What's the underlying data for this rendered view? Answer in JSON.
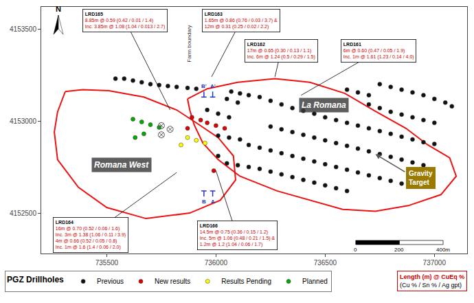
{
  "chart_data": {
    "type": "scatter",
    "xlim": [
      735200,
      737150
    ],
    "ylim": [
      4152280,
      4153620
    ],
    "xticks": [
      735500,
      736000,
      736500,
      737000
    ],
    "yticks": [
      4152500,
      4153000,
      4153500
    ],
    "grid": false,
    "legend": "bottom",
    "legend_title": "PGZ Drillholes",
    "series": [
      {
        "type": "line",
        "color": "#ee1111",
        "line_style": "solid",
        "x": [
          735310,
          735275,
          735260,
          735275,
          735370,
          735500,
          735680,
          735880,
          736020,
          736090,
          736080,
          736010,
          735910,
          735820,
          735670,
          735510,
          735390,
          735310
        ],
        "values": [
          4153160,
          4153050,
          4152940,
          4152790,
          4152640,
          4152530,
          4152470,
          4152500,
          4152570,
          4152680,
          4152810,
          4152910,
          4152990,
          4153060,
          4153130,
          4153165,
          4153170,
          4153160
        ]
      },
      {
        "type": "line",
        "color": "#ee1111",
        "line_style": "solid",
        "x": [
          735870,
          735960,
          736100,
          736270,
          736430,
          736590,
          736720,
          736870,
          736970,
          737070,
          737100,
          737030,
          736880,
          736730,
          736580,
          736430,
          736280,
          736110,
          736010,
          735940,
          735900,
          735880,
          735870
        ],
        "values": [
          4153120,
          4153175,
          4153210,
          4153230,
          4153210,
          4153150,
          4153060,
          4152960,
          4152870,
          4152800,
          4152700,
          4152600,
          4152540,
          4152510,
          4152520,
          4152570,
          4152620,
          4152700,
          4152790,
          4152880,
          4152980,
          4153060,
          4153120
        ]
      },
      {
        "name": "Previous",
        "color": "#111111",
        "marker": "circle",
        "x": [
          735540,
          735580,
          735620,
          735660,
          735700,
          735740,
          735780,
          735820,
          735870,
          735910,
          736070,
          736110,
          736150,
          736200,
          736250,
          736300,
          736350,
          736400,
          736450,
          736500,
          736550,
          736600,
          736650,
          736700,
          736750,
          736800,
          736850,
          736900,
          736950,
          737000,
          736250,
          736300,
          736350,
          736400,
          736450,
          736500,
          736550,
          736600,
          736650,
          736700,
          736750,
          736800,
          736850,
          736900,
          736950,
          736150,
          736200,
          736250,
          736300,
          736350,
          736400,
          736450,
          736500,
          736550,
          736600,
          736650,
          736700,
          736750,
          736800,
          736850,
          736050,
          736100,
          736150,
          736200,
          736250,
          736300,
          736350,
          736400,
          736450,
          736500,
          736550,
          736600,
          735960,
          736010,
          736060,
          736010,
          736060,
          736110,
          736010,
          736100,
          736050,
          736750,
          736800,
          736850,
          736900,
          736950,
          737000,
          737050,
          737080,
          736700,
          736750,
          736800,
          736850,
          736900,
          736950,
          737000,
          736600,
          736650,
          736700
        ],
        "values": [
          4153230,
          4153230,
          4153220,
          4153210,
          4153200,
          4153195,
          4153190,
          4153185,
          4153180,
          4153175,
          4153160,
          4153150,
          4153140,
          4153130,
          4153110,
          4153090,
          4153070,
          4153055,
          4153040,
          4153020,
          4153005,
          4152990,
          4152975,
          4152960,
          4152945,
          4152930,
          4152915,
          4152900,
          4152885,
          4152875,
          4152970,
          4152955,
          4152940,
          4152925,
          4152910,
          4152895,
          4152880,
          4152865,
          4152850,
          4152835,
          4152820,
          4152805,
          4152790,
          4152775,
          4152760,
          4152870,
          4152855,
          4152840,
          4152825,
          4152810,
          4152795,
          4152780,
          4152765,
          4152750,
          4152735,
          4152720,
          4152705,
          4152690,
          4152675,
          4152660,
          4152770,
          4152760,
          4152750,
          4152740,
          4152725,
          4152710,
          4152695,
          4152680,
          4152665,
          4152650,
          4152635,
          4152620,
          4153060,
          4153040,
          4153020,
          4152920,
          4152910,
          4152900,
          4152810,
          4153100,
          4153120,
          4153200,
          4153185,
          4153170,
          4153155,
          4153140,
          4153120,
          4153100,
          4153080,
          4153090,
          4153070,
          4153050,
          4153035,
          4153020,
          4153005,
          4152990,
          4153170,
          4153155,
          4153140
        ]
      },
      {
        "name": "New results",
        "color": "#dd0000",
        "marker": "circle",
        "x": [
          735890,
          735930,
          735960,
          736000,
          736040,
          735870,
          735990
        ],
        "values": [
          4153020,
          4153005,
          4152990,
          4152975,
          4152960,
          4152960,
          4152730
        ]
      },
      {
        "name": "Results Pending",
        "color": "#ffff00",
        "marker": "circle",
        "x": [
          735870,
          735910,
          735950,
          735840
        ],
        "values": [
          4152910,
          4152895,
          4152880,
          4152870
        ]
      },
      {
        "name": "Planned",
        "color": "#00aa00",
        "marker": "circle",
        "x": [
          735620,
          735660,
          735700,
          735740,
          735670,
          735630
        ],
        "values": [
          4153010,
          4152995,
          4152980,
          4152965,
          4152930,
          4152910
        ]
      },
      {
        "color": "#555555",
        "marker": "circle-x",
        "x": [
          735750,
          735790,
          735750
        ],
        "values": [
          4152975,
          4152955,
          4152925
        ]
      }
    ],
    "sections": [
      {
        "x": 735985,
        "y_top": 4153160,
        "y_bottom": 4152590,
        "label_top": "A'",
        "label_bottom": "A",
        "color": "#2233cc"
      },
      {
        "x": 735945,
        "y_top": 4153160,
        "y_bottom": 4152590,
        "label_top": "B'",
        "label_bottom": "B",
        "color": "#2233cc"
      }
    ],
    "annotations": [
      {
        "title": "LRD165",
        "x": 735790,
        "y": 4153060,
        "color": "#cc0000",
        "lines": [
          "8.85m @ 0.59 (0.42 / 0.01 / 1.4)",
          "Inc. 3.85m @ 1.08 (1.04 / 0.013 / 2.7)"
        ]
      },
      {
        "title": "LRD163",
        "x": 735980,
        "y": 4153240,
        "color": "#cc0000",
        "lines": [
          "1.65m @ 0.86 (0.76 / 0.03 / 3.7) &",
          "12m @ 0.31 (0.25 / 0.02 / 2.2)"
        ]
      },
      {
        "title": "LRD162",
        "x": 736270,
        "y": 4153240,
        "color": "#cc0000",
        "lines": [
          "17m @ 0.65 (0.30 / 0.13 / 1.1)",
          "Inc. 6m @ 1.24 (0.5 / 0.29 / 1.5)"
        ]
      },
      {
        "title": "LRD161",
        "x": 736390,
        "y": 4153140,
        "color": "#cc0000",
        "lines": [
          "6m @ 0.60 (0.47 / 0.05 / 1.9)",
          "Inc. 1m @ 1.61 (1.23 / 0.14 / 4.0)"
        ]
      },
      {
        "title": "LRD164",
        "x": 735820,
        "y": 4152720,
        "color": "#cc0000",
        "lines": [
          "16m @ 0.70 (0.52 / 0.06 / 1.6)",
          "Inc. 3m @ 1.38 (1.06 / 0.11 / 3.9)",
          "4m @ 0.66 (0.52 / 0.05 / 0.8)",
          "Inc. 1m @ 1.6 (1.4 / 0.06 / 2.0)"
        ]
      },
      {
        "title": "LRD166",
        "x": 736000,
        "y": 4152730,
        "color": "#cc0000",
        "lines": [
          "14.5m @ 0.75 (0.36 / 0.15 / 1.2)",
          "Inc. 5m @ 1.06 (0.48 / 0.21 / 1.5) &",
          "1.2m @ 1.2 (1.04 / 0.06 / 1.7)"
        ]
      }
    ],
    "area_labels": [
      {
        "text": "Romana West",
        "x": 735430,
        "y": 4152760
      },
      {
        "text": "La Romana",
        "x": 736380,
        "y": 4153085
      }
    ],
    "target": {
      "text": "Gravity\nTarget",
      "x": 736870,
      "y": 4152690,
      "arrow_from": [
        736870,
        4152720
      ],
      "arrow_to": [
        736730,
        4152820
      ]
    },
    "boundary_label": {
      "text": "Farm boundary",
      "x": 735875,
      "y": 4153310
    },
    "notes": {
      "lines": [
        "Length (m) @ CuEq %",
        "(Cu % / Sn % / Ag gpt)"
      ],
      "color": "#cc0000"
    },
    "north": "N",
    "scale_bar": {
      "x": 736640,
      "y": 4152340,
      "ticks": [
        0,
        200,
        {
          "value": 400,
          "label": "400m"
        }
      ]
    }
  }
}
